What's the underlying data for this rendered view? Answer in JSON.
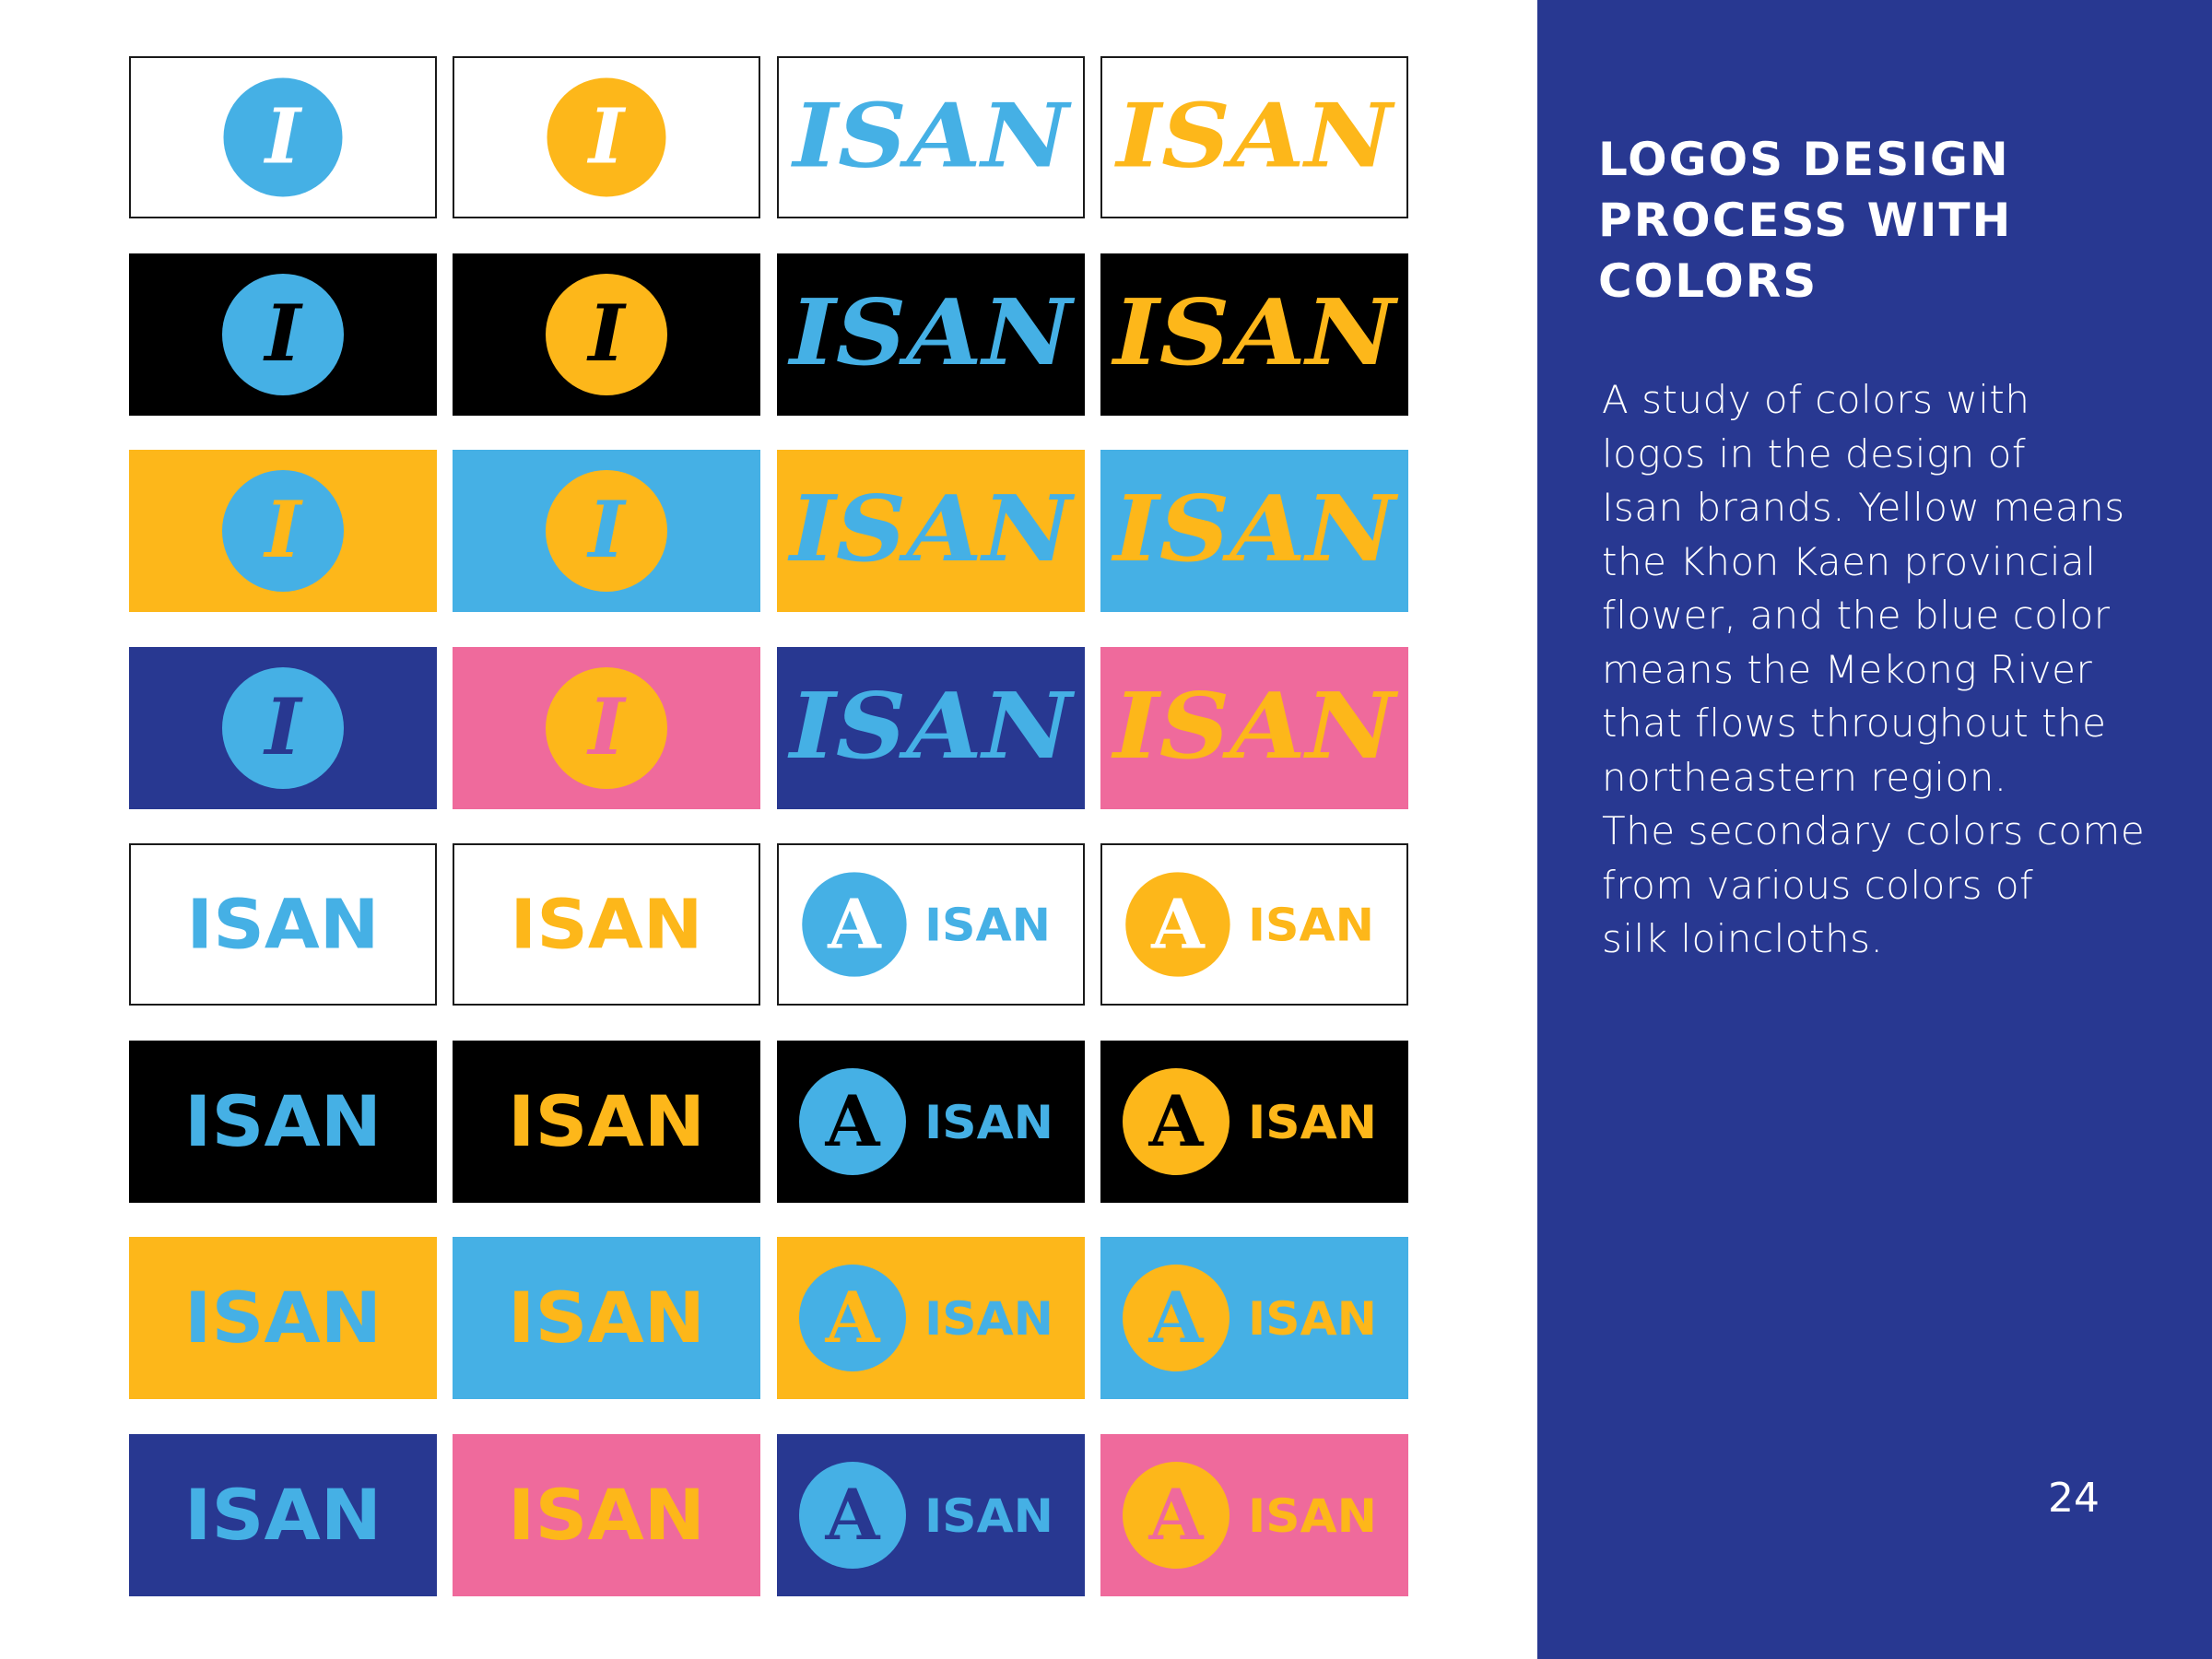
{
  "sidebar": {
    "title": "LOGOS DESIGN\nPROCESS WITH\nCOLORS",
    "body": "A study of colors with\nlogos in the design of\nIsan brands. Yellow means\nthe Khon Kaen provincial\nflower, and the blue color\nmeans the Mekong River\nthat flows throughout the\nnortheastern region.\nThe secondary colors come\nfrom various colors of\nsilk loincloths.",
    "page_number": "24",
    "background": "#283891"
  },
  "palette": {
    "blue": "#45B0E5",
    "yellow": "#FDB71A",
    "navy": "#283891",
    "pink": "#EF6A9C",
    "black": "#000000",
    "white": "#FFFFFF"
  },
  "logo_grid": {
    "wordmark_text": "ISAN",
    "emblem_letter": "A",
    "monogram_letter": "I",
    "rows": [
      {
        "style": "script",
        "tiles": [
          {
            "variant": "monogram",
            "bg": "white",
            "fg": "blue",
            "ink": "white"
          },
          {
            "variant": "monogram",
            "bg": "white",
            "fg": "yellow",
            "ink": "white"
          },
          {
            "variant": "wordmark",
            "bg": "white",
            "fg": "blue"
          },
          {
            "variant": "wordmark",
            "bg": "white",
            "fg": "yellow"
          }
        ]
      },
      {
        "style": "script",
        "tiles": [
          {
            "variant": "monogram",
            "bg": "black",
            "fg": "blue",
            "ink": "black"
          },
          {
            "variant": "monogram",
            "bg": "black",
            "fg": "yellow",
            "ink": "black"
          },
          {
            "variant": "wordmark",
            "bg": "black",
            "fg": "blue"
          },
          {
            "variant": "wordmark",
            "bg": "black",
            "fg": "yellow"
          }
        ]
      },
      {
        "style": "script",
        "tiles": [
          {
            "variant": "monogram",
            "bg": "yellow",
            "fg": "blue",
            "ink": "yellow"
          },
          {
            "variant": "monogram",
            "bg": "blue",
            "fg": "yellow",
            "ink": "blue"
          },
          {
            "variant": "wordmark",
            "bg": "yellow",
            "fg": "blue"
          },
          {
            "variant": "wordmark",
            "bg": "blue",
            "fg": "yellow"
          }
        ]
      },
      {
        "style": "script",
        "tiles": [
          {
            "variant": "monogram",
            "bg": "navy",
            "fg": "blue",
            "ink": "navy"
          },
          {
            "variant": "monogram",
            "bg": "pink",
            "fg": "yellow",
            "ink": "pink"
          },
          {
            "variant": "wordmark",
            "bg": "navy",
            "fg": "blue"
          },
          {
            "variant": "wordmark",
            "bg": "pink",
            "fg": "yellow"
          }
        ]
      },
      {
        "style": "block",
        "tiles": [
          {
            "variant": "wordmark",
            "bg": "white",
            "fg": "blue"
          },
          {
            "variant": "wordmark",
            "bg": "white",
            "fg": "yellow"
          },
          {
            "variant": "emblem",
            "bg": "white",
            "fg": "blue",
            "ink": "white"
          },
          {
            "variant": "emblem",
            "bg": "white",
            "fg": "yellow",
            "ink": "white"
          }
        ]
      },
      {
        "style": "block",
        "tiles": [
          {
            "variant": "wordmark",
            "bg": "black",
            "fg": "blue"
          },
          {
            "variant": "wordmark",
            "bg": "black",
            "fg": "yellow"
          },
          {
            "variant": "emblem",
            "bg": "black",
            "fg": "blue",
            "ink": "black"
          },
          {
            "variant": "emblem",
            "bg": "black",
            "fg": "yellow",
            "ink": "black"
          }
        ]
      },
      {
        "style": "block",
        "tiles": [
          {
            "variant": "wordmark",
            "bg": "yellow",
            "fg": "blue"
          },
          {
            "variant": "wordmark",
            "bg": "blue",
            "fg": "yellow"
          },
          {
            "variant": "emblem",
            "bg": "yellow",
            "fg": "blue",
            "ink": "yellow"
          },
          {
            "variant": "emblem",
            "bg": "blue",
            "fg": "yellow",
            "ink": "blue"
          }
        ]
      },
      {
        "style": "block",
        "tiles": [
          {
            "variant": "wordmark",
            "bg": "navy",
            "fg": "blue"
          },
          {
            "variant": "wordmark",
            "bg": "pink",
            "fg": "yellow"
          },
          {
            "variant": "emblem",
            "bg": "navy",
            "fg": "blue",
            "ink": "navy"
          },
          {
            "variant": "emblem",
            "bg": "pink",
            "fg": "yellow",
            "ink": "pink"
          }
        ]
      }
    ]
  }
}
